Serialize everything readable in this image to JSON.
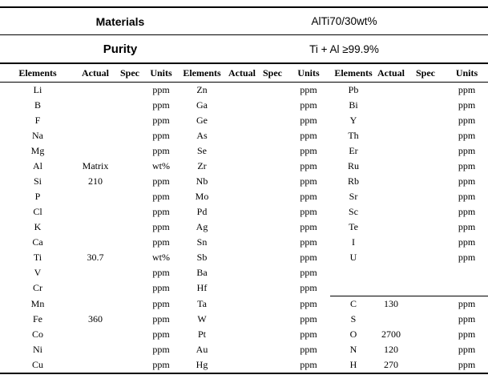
{
  "header": {
    "materials_label": "Materials",
    "materials_value": "AlTi70/30wt%",
    "purity_label": "Purity",
    "purity_value": "Ti + Al ≥99.9%"
  },
  "table": {
    "column_headers": [
      "Elements",
      "Actual",
      "Spec",
      "Units"
    ],
    "groups": [
      {
        "name": "group-1",
        "rows": [
          [
            "Li",
            "",
            "",
            "ppm"
          ],
          [
            "B",
            "",
            "",
            "ppm"
          ],
          [
            "F",
            "",
            "",
            "ppm"
          ],
          [
            "Na",
            "",
            "",
            "ppm"
          ],
          [
            "Mg",
            "",
            "",
            "ppm"
          ],
          [
            "Al",
            "Matrix",
            "",
            "wt%"
          ],
          [
            "Si",
            "210",
            "",
            "ppm"
          ],
          [
            "P",
            "",
            "",
            "ppm"
          ],
          [
            "Cl",
            "",
            "",
            "ppm"
          ],
          [
            "K",
            "",
            "",
            "ppm"
          ],
          [
            "Ca",
            "",
            "",
            "ppm"
          ],
          [
            "Ti",
            "30.7",
            "",
            "wt%"
          ],
          [
            "V",
            "",
            "",
            "ppm"
          ],
          [
            "Cr",
            "",
            "",
            "ppm"
          ],
          [
            "Mn",
            "",
            "",
            "ppm"
          ],
          [
            "Fe",
            "360",
            "",
            "ppm"
          ],
          [
            "Co",
            "",
            "",
            "ppm"
          ],
          [
            "Ni",
            "",
            "",
            "ppm"
          ],
          [
            "Cu",
            "",
            "",
            "ppm"
          ]
        ]
      },
      {
        "name": "group-2",
        "rows": [
          [
            "Zn",
            "",
            "",
            "ppm"
          ],
          [
            "Ga",
            "",
            "",
            "ppm"
          ],
          [
            "Ge",
            "",
            "",
            "ppm"
          ],
          [
            "As",
            "",
            "",
            "ppm"
          ],
          [
            "Se",
            "",
            "",
            "ppm"
          ],
          [
            "Zr",
            "",
            "",
            "ppm"
          ],
          [
            "Nb",
            "",
            "",
            "ppm"
          ],
          [
            "Mo",
            "",
            "",
            "ppm"
          ],
          [
            "Pd",
            "",
            "",
            "ppm"
          ],
          [
            "Ag",
            "",
            "",
            "ppm"
          ],
          [
            "Sn",
            "",
            "",
            "ppm"
          ],
          [
            "Sb",
            "",
            "",
            "ppm"
          ],
          [
            "Ba",
            "",
            "",
            "ppm"
          ],
          [
            "Hf",
            "",
            "",
            "ppm"
          ],
          [
            "Ta",
            "",
            "",
            "ppm"
          ],
          [
            "W",
            "",
            "",
            "ppm"
          ],
          [
            "Pt",
            "",
            "",
            "ppm"
          ],
          [
            "Au",
            "",
            "",
            "ppm"
          ],
          [
            "Hg",
            "",
            "",
            "ppm"
          ]
        ]
      },
      {
        "name": "group-3",
        "divider_before": 14,
        "rows": [
          [
            "Pb",
            "",
            "",
            "ppm"
          ],
          [
            "Bi",
            "",
            "",
            "ppm"
          ],
          [
            "Y",
            "",
            "",
            "ppm"
          ],
          [
            "Th",
            "",
            "",
            "ppm"
          ],
          [
            "Er",
            "",
            "",
            "ppm"
          ],
          [
            "Ru",
            "",
            "",
            "ppm"
          ],
          [
            "Rb",
            "",
            "",
            "ppm"
          ],
          [
            "Sr",
            "",
            "",
            "ppm"
          ],
          [
            "Sc",
            "",
            "",
            "ppm"
          ],
          [
            "Te",
            "",
            "",
            "ppm"
          ],
          [
            "I",
            "",
            "",
            "ppm"
          ],
          [
            "U",
            "",
            "",
            "ppm"
          ],
          [
            "",
            "",
            "",
            ""
          ],
          [
            "",
            "",
            "",
            ""
          ],
          [
            "C",
            "130",
            "",
            "ppm"
          ],
          [
            "S",
            "",
            "",
            "ppm"
          ],
          [
            "O",
            "2700",
            "",
            "ppm"
          ],
          [
            "N",
            "120",
            "",
            "ppm"
          ],
          [
            "H",
            "270",
            "",
            "ppm"
          ]
        ]
      }
    ]
  }
}
